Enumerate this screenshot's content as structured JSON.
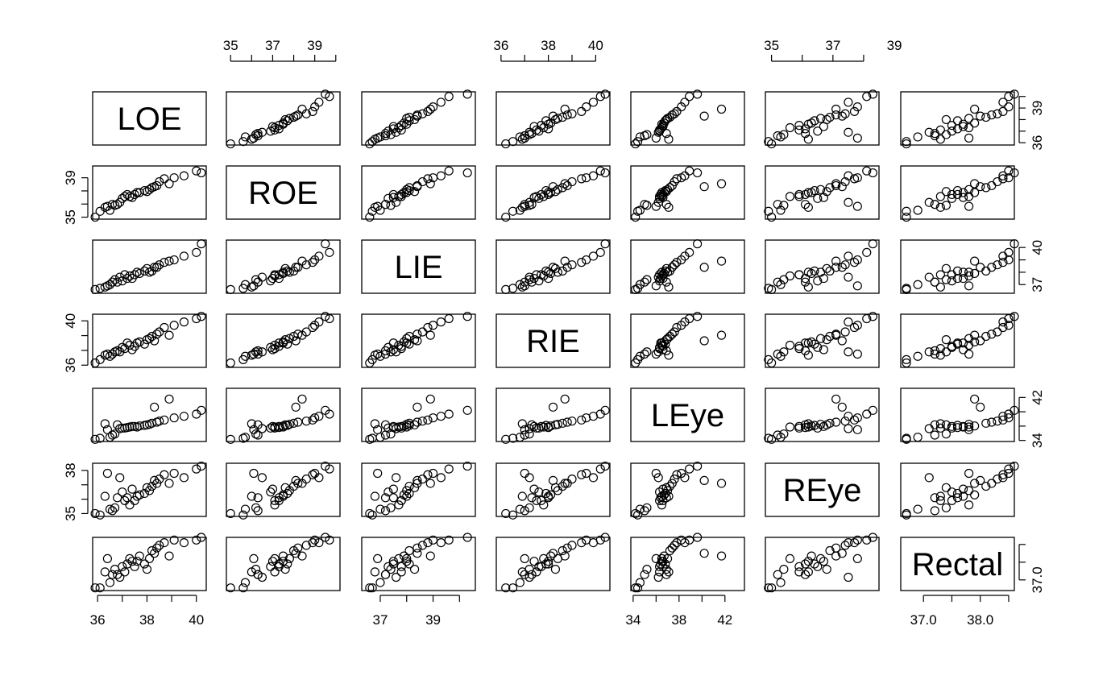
{
  "chart_data": {
    "type": "scatter",
    "kind": "scatterplot-matrix",
    "variables": [
      "LOE",
      "ROE",
      "LIE",
      "RIE",
      "LEye",
      "REye",
      "Rectal"
    ],
    "ranges": [
      [
        35.8,
        40.4
      ],
      [
        34.8,
        40.2
      ],
      [
        36.3,
        40.6
      ],
      [
        35.8,
        40.6
      ],
      [
        33.8,
        43.7
      ],
      [
        34.8,
        38.5
      ],
      [
        36.6,
        38.6
      ]
    ],
    "tick_labels": [
      [
        "36",
        "38",
        "40"
      ],
      [
        "35",
        "37",
        "39"
      ],
      [
        "37",
        "39"
      ],
      [
        "36",
        "38",
        "40"
      ],
      [
        "34",
        "38",
        "42"
      ],
      [
        "35",
        "37",
        "39"
      ],
      [
        "37.0",
        "38.0"
      ]
    ],
    "right_tick_labels": [
      [
        "36",
        "39"
      ],
      [],
      [
        "37",
        "40"
      ],
      [],
      [
        "34",
        "42"
      ],
      [],
      [
        "37.0"
      ]
    ],
    "left_tick_labels": [
      [],
      [
        "35",
        "39"
      ],
      [],
      [
        "36",
        "40"
      ],
      [],
      [
        "35",
        "38"
      ],
      []
    ],
    "observations": [
      [
        35.9,
        35.0,
        36.6,
        36.2,
        34.2,
        35.0,
        36.7
      ],
      [
        36.1,
        35.6,
        36.7,
        36.5,
        34.4,
        34.9,
        36.7
      ],
      [
        36.5,
        35.7,
        37.0,
        36.8,
        34.6,
        35.3,
        36.9
      ],
      [
        36.6,
        36.3,
        37.2,
        37.0,
        35.0,
        35.2,
        37.2
      ],
      [
        36.7,
        36.2,
        37.4,
        37.2,
        35.2,
        35.4,
        37.4
      ],
      [
        36.8,
        36.3,
        37.2,
        37.3,
        36.9,
        36.1,
        37.2
      ],
      [
        36.9,
        36.5,
        37.6,
        37.2,
        36.2,
        37.5,
        37.1
      ],
      [
        37.0,
        36.9,
        37.3,
        37.6,
        36.3,
        36.5,
        37.5
      ],
      [
        37.1,
        37.1,
        37.8,
        37.5,
        36.3,
        35.9,
        37.3
      ],
      [
        37.2,
        37.3,
        37.5,
        38.0,
        36.4,
        36.1,
        37.6
      ],
      [
        37.3,
        37.1,
        37.7,
        37.8,
        36.5,
        35.6,
        37.8
      ],
      [
        37.5,
        37.3,
        37.8,
        37.7,
        36.6,
        35.9,
        37.5
      ],
      [
        37.6,
        37.5,
        38.0,
        38.0,
        36.5,
        36.2,
        37.7
      ],
      [
        37.7,
        37.5,
        37.9,
        38.1,
        36.7,
        36.3,
        37.9
      ],
      [
        37.9,
        37.7,
        38.1,
        37.9,
        36.8,
        36.4,
        37.6
      ],
      [
        38.0,
        37.6,
        38.3,
        38.3,
        36.9,
        36.8,
        37.4
      ],
      [
        38.1,
        37.8,
        38.0,
        38.4,
        37.0,
        36.6,
        37.8
      ],
      [
        38.2,
        38.0,
        38.1,
        38.6,
        37.2,
        36.9,
        38.1
      ],
      [
        38.4,
        38.2,
        38.4,
        38.8,
        37.4,
        37.1,
        38.2
      ],
      [
        38.5,
        38.6,
        38.6,
        39.0,
        37.6,
        37.4,
        38.3
      ],
      [
        38.7,
        38.9,
        38.8,
        39.4,
        37.8,
        37.7,
        38.4
      ],
      [
        39.1,
        39.0,
        39.0,
        39.6,
        38.2,
        37.8,
        38.5
      ],
      [
        39.5,
        39.2,
        39.3,
        39.9,
        38.5,
        37.5,
        38.4
      ],
      [
        40.0,
        39.7,
        39.6,
        40.2,
        38.9,
        38.1,
        38.5
      ],
      [
        40.2,
        39.5,
        40.3,
        40.4,
        39.6,
        38.3,
        38.6
      ],
      [
        36.3,
        36.0,
        36.8,
        36.9,
        37.1,
        36.2,
        37.3
      ],
      [
        37.4,
        37.0,
        37.5,
        37.4,
        36.6,
        36.7,
        37.7
      ],
      [
        38.3,
        38.1,
        38.4,
        38.2,
        40.2,
        37.3,
        38.0
      ],
      [
        38.9,
        38.4,
        38.9,
        38.7,
        41.7,
        37.1,
        37.9
      ],
      [
        36.4,
        36.1,
        36.9,
        37.0,
        36.0,
        37.8,
        37.8
      ]
    ]
  }
}
